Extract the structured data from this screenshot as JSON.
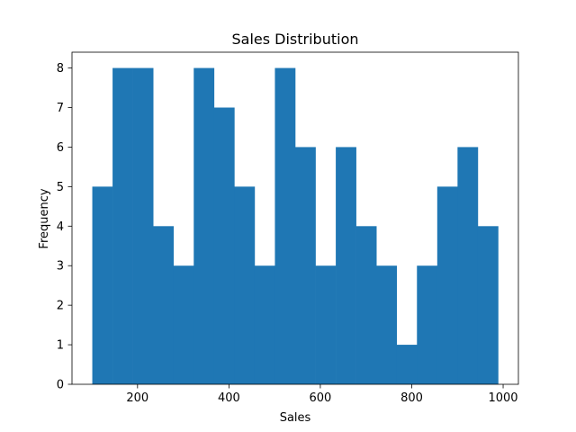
{
  "chart_data": {
    "type": "bar",
    "title": "Sales Distribution",
    "xlabel": "Sales",
    "ylabel": "Frequency",
    "bin_edges": [
      101.0,
      145.4,
      189.8,
      234.2,
      278.6,
      323.0,
      367.4,
      411.8,
      456.2,
      500.6,
      545.0,
      589.4,
      633.8,
      678.2,
      722.6,
      767.0,
      811.4,
      855.8,
      900.2,
      944.6,
      989.0
    ],
    "counts": [
      5,
      8,
      8,
      4,
      3,
      8,
      7,
      5,
      3,
      8,
      6,
      3,
      6,
      4,
      3,
      1,
      3,
      5,
      6,
      4
    ],
    "xlim": [
      56.6,
      1033.4
    ],
    "ylim": [
      0,
      8.4
    ],
    "xticks": [
      200,
      400,
      600,
      800,
      1000
    ],
    "yticks": [
      0,
      1,
      2,
      3,
      4,
      5,
      6,
      7,
      8
    ],
    "bar_color": "#1f77b4",
    "grid": false,
    "legend": "none"
  }
}
